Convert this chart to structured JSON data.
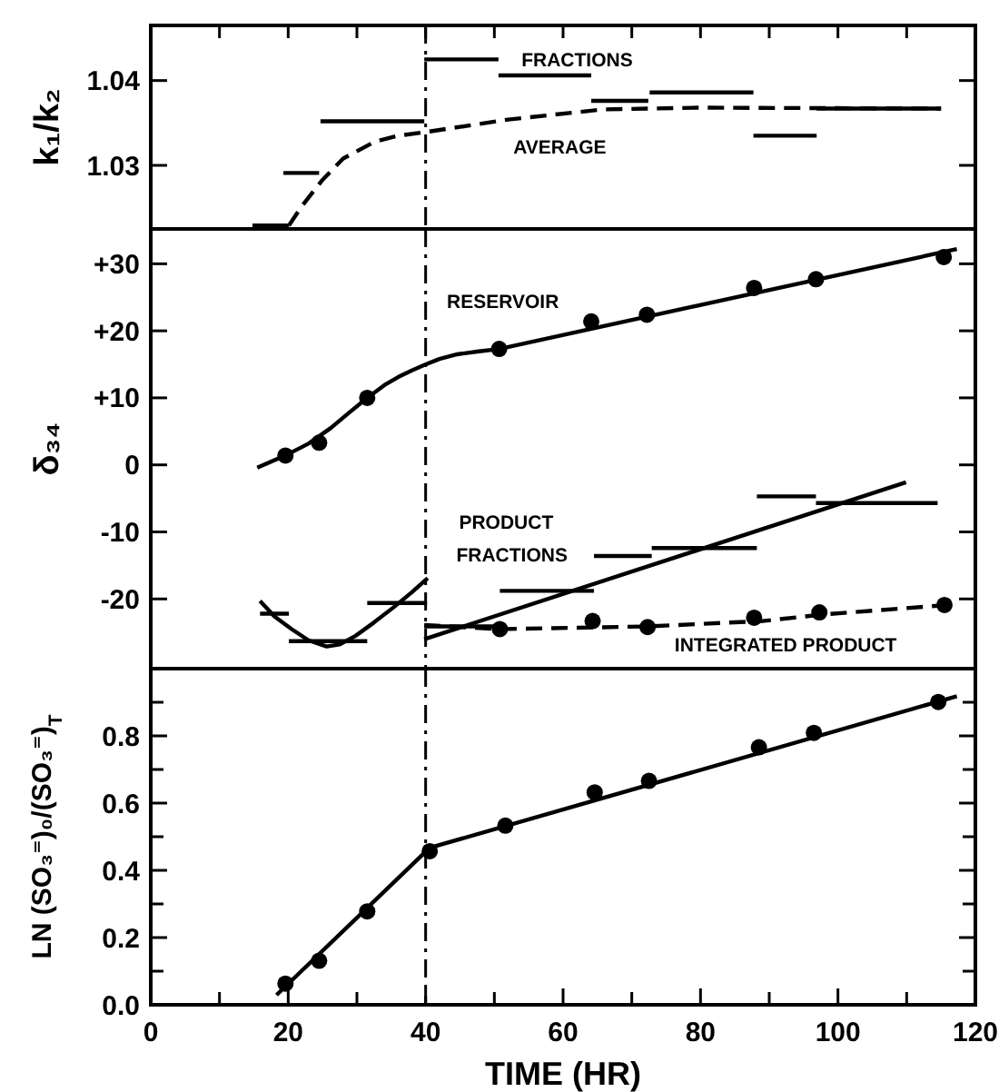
{
  "chart_data": [
    {
      "type": "line",
      "ylabel": "k₁/k₂",
      "xlim": [
        0,
        120
      ],
      "ylim": [
        1.0225,
        1.0465
      ],
      "xticks": [
        {
          "value": 10,
          "label": null
        },
        {
          "value": 20,
          "label": null
        },
        {
          "value": 30,
          "label": null
        },
        {
          "value": 40,
          "label": null
        },
        {
          "value": 50,
          "label": null
        },
        {
          "value": 60,
          "label": null
        },
        {
          "value": 70,
          "label": null
        },
        {
          "value": 80,
          "label": null
        },
        {
          "value": 90,
          "label": null
        },
        {
          "value": 100,
          "label": null
        },
        {
          "value": 110,
          "label": null
        }
      ],
      "yticks": [
        1.03,
        1.04
      ],
      "tick_labels": "y",
      "series": [
        {
          "color": "#000000",
          "line_style": "solid",
          "x": [
            14.8,
            20.1
          ],
          "values": [
            1.0229,
            1.0229
          ]
        },
        {
          "color": "#000000",
          "line_style": "solid",
          "x": [
            19.3,
            24.5
          ],
          "values": [
            1.0291,
            1.0291
          ]
        },
        {
          "color": "#000000",
          "line_style": "solid",
          "x": [
            24.7,
            39.8
          ],
          "values": [
            1.0352,
            1.0352
          ]
        },
        {
          "color": "#000000",
          "line_style": "solid",
          "x": [
            39.8,
            50.6
          ],
          "values": [
            1.0425,
            1.0425
          ]
        },
        {
          "color": "#000000",
          "line_style": "solid",
          "x": [
            50.6,
            64.1
          ],
          "values": [
            1.0406,
            1.0406
          ]
        },
        {
          "color": "#000000",
          "line_style": "solid",
          "x": [
            64.1,
            72.4
          ],
          "values": [
            1.0376,
            1.0376
          ]
        },
        {
          "color": "#000000",
          "line_style": "solid",
          "x": [
            72.6,
            87.7
          ],
          "values": [
            1.0386,
            1.0386
          ]
        },
        {
          "color": "#000000",
          "line_style": "solid",
          "x": [
            87.7,
            96.9
          ],
          "values": [
            1.0335,
            1.0335
          ]
        },
        {
          "color": "#000000",
          "line_style": "solid",
          "x": [
            96.9,
            115
          ],
          "values": [
            1.0367,
            1.0367
          ]
        },
        {
          "color": "#000000",
          "line_style": "dashed",
          "x": [
            20.1,
            22,
            24.9,
            28,
            32.6,
            36,
            39.8,
            52,
            65.9,
            79.8,
            115
          ],
          "values": [
            1.0229,
            1.0252,
            1.0282,
            1.0308,
            1.0328,
            1.0335,
            1.0339,
            1.0354,
            1.0366,
            1.0368,
            1.0367
          ]
        }
      ],
      "annotations": [
        "FRACTIONS",
        "AVERAGE"
      ],
      "ref_lines": [
        {
          "axis": "x",
          "value": 40,
          "line_style": "dashdot",
          "color": "#000000"
        }
      ]
    },
    {
      "type": "line",
      "ylabel": "δ₃₄",
      "xlim": [
        0,
        120
      ],
      "ylim": [
        -30.4,
        35.2
      ],
      "yticks": [
        {
          "value": 30,
          "label": "+30"
        },
        {
          "value": 20,
          "label": "+20"
        },
        {
          "value": 10,
          "label": "+10"
        },
        0,
        -10,
        -20
      ],
      "tick_labels": "y",
      "series": [
        {
          "type": "scatter",
          "color": "#000000",
          "marker": "circle",
          "x": [
            19.6,
            24.5,
            31.5,
            50.7,
            64.1,
            72.2,
            87.8,
            96.8,
            115.4
          ],
          "values": [
            1.4,
            3.3,
            10.0,
            17.3,
            21.4,
            22.4,
            26.4,
            27.7,
            31.0
          ]
        },
        {
          "color": "#000000",
          "line_style": "solid",
          "x": [
            15.5,
            19.6,
            23,
            26.2,
            29,
            31.5,
            34,
            36.0,
            38,
            39.8,
            42,
            44.6,
            47.5,
            50.7,
            117.3
          ],
          "values": [
            -0.4,
            1.4,
            3.2,
            5.5,
            7.9,
            10.0,
            11.9,
            13.1,
            14.1,
            14.9,
            15.8,
            16.5,
            16.9,
            17.3,
            32.2
          ]
        },
        {
          "color": "#000000",
          "line_style": "solid",
          "x": [
            15.9,
            20.1
          ],
          "values": [
            -22.2,
            -22.2
          ]
        },
        {
          "color": "#000000",
          "line_style": "solid",
          "x": [
            20.1,
            31.5
          ],
          "values": [
            -26.3,
            -26.3
          ]
        },
        {
          "color": "#000000",
          "line_style": "solid",
          "x": [
            31.5,
            40.2
          ],
          "values": [
            -20.6,
            -20.6
          ]
        },
        {
          "color": "#000000",
          "line_style": "solid",
          "x": [
            39.8,
            50.8
          ],
          "values": [
            -24.1,
            -24.1
          ]
        },
        {
          "color": "#000000",
          "line_style": "solid",
          "x": [
            50.8,
            64.5
          ],
          "values": [
            -18.8,
            -18.8
          ]
        },
        {
          "color": "#000000",
          "line_style": "solid",
          "x": [
            64.5,
            72.9
          ],
          "values": [
            -13.6,
            -13.6
          ]
        },
        {
          "color": "#000000",
          "line_style": "solid",
          "x": [
            72.9,
            88.2
          ],
          "values": [
            -12.4,
            -12.4
          ]
        },
        {
          "color": "#000000",
          "line_style": "solid",
          "x": [
            88.2,
            96.8
          ],
          "values": [
            -4.7,
            -4.7
          ]
        },
        {
          "color": "#000000",
          "line_style": "solid",
          "x": [
            96.8,
            114.5
          ],
          "values": [
            -5.7,
            -5.7
          ]
        },
        {
          "color": "#000000",
          "line_style": "solid",
          "x": [
            15.9,
            18,
            20.5,
            23,
            25.6,
            27.5,
            29.8,
            32.5,
            35.4,
            38,
            40.3
          ],
          "values": [
            -20.3,
            -22.6,
            -24.5,
            -26.2,
            -27.1,
            -26.8,
            -25.5,
            -23.5,
            -21.2,
            -19.0,
            -16.9
          ]
        },
        {
          "color": "#000000",
          "line_style": "solid",
          "x": [
            39.8,
            109.9
          ],
          "values": [
            -26.0,
            -2.6
          ]
        },
        {
          "type": "scatter",
          "color": "#000000",
          "marker": "circle",
          "x": [
            50.8,
            64.3,
            72.3,
            87.8,
            97.3,
            115.5
          ],
          "values": [
            -24.5,
            -23.3,
            -24.2,
            -22.8,
            -22.0,
            -20.9
          ]
        },
        {
          "color": "#000000",
          "line_style": "dashed",
          "x": [
            39.8,
            50.8,
            72.3,
            89,
            98,
            115.9
          ],
          "values": [
            -23.9,
            -24.5,
            -24.1,
            -23.3,
            -22.3,
            -20.9
          ]
        }
      ],
      "annotations": [
        "RESERVOIR",
        "PRODUCT",
        "FRACTIONS",
        "INTEGRATED PRODUCT"
      ],
      "ref_lines": [
        {
          "axis": "x",
          "value": 40,
          "line_style": "dashdot",
          "color": "#000000"
        }
      ]
    },
    {
      "type": "line",
      "xlabel": "TIME (HR)",
      "ylabel": "LN (SO₃⁼)₀/(SO₃⁼)$_{T}$",
      "xlim": [
        0,
        120
      ],
      "ylim": [
        0,
        1.0
      ],
      "xticks": [
        0,
        {
          "value": 10,
          "label": null
        },
        20,
        {
          "value": 30,
          "label": null
        },
        40,
        {
          "value": 50,
          "label": null
        },
        60,
        {
          "value": 70,
          "label": null
        },
        80,
        {
          "value": 90,
          "label": null
        },
        100,
        {
          "value": 110,
          "label": null
        },
        120
      ],
      "yticks": [
        {
          "value": 0,
          "label": "0.0"
        },
        {
          "value": 0.1,
          "label": null
        },
        0.2,
        {
          "value": 0.3,
          "label": null
        },
        0.4,
        {
          "value": 0.5,
          "label": null
        },
        0.6,
        {
          "value": 0.7,
          "label": null
        },
        0.8,
        {
          "value": 0.9,
          "label": null
        }
      ],
      "series": [
        {
          "type": "scatter",
          "color": "#000000",
          "marker": "circle",
          "x": [
            19.6,
            24.5,
            31.5,
            40.6,
            51.6,
            64.6,
            72.5,
            88.5,
            96.5,
            114.6
          ],
          "values": [
            0.063,
            0.131,
            0.278,
            0.457,
            0.533,
            0.632,
            0.666,
            0.766,
            0.809,
            0.901
          ]
        },
        {
          "color": "#000000",
          "line_style": "solid",
          "x": [
            18.3,
            40.6,
            117.3
          ],
          "values": [
            0.029,
            0.467,
            0.918
          ]
        }
      ],
      "ref_lines": [
        {
          "axis": "x",
          "value": 40,
          "line_style": "dashdot",
          "color": "#000000"
        }
      ]
    }
  ]
}
